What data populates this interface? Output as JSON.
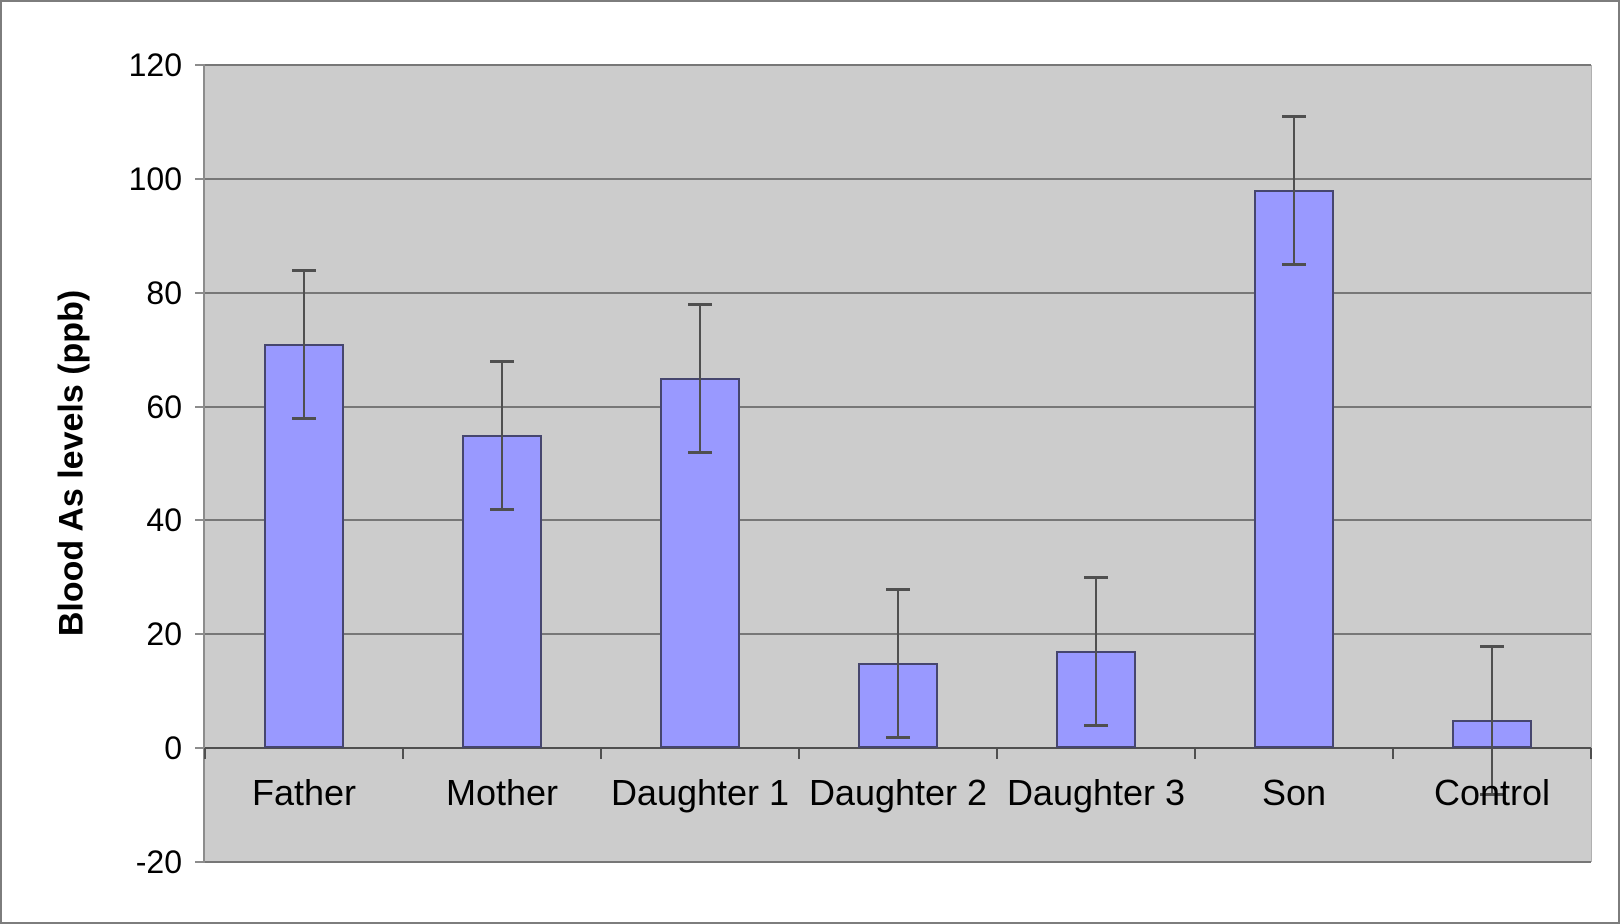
{
  "chart_data": {
    "type": "bar",
    "title": "",
    "ylabel": "Blood As levels (ppb)",
    "xlabel": "",
    "categories": [
      "Father",
      "Mother",
      "Daughter 1",
      "Daughter 2",
      "Daughter 3",
      "Son",
      "Control"
    ],
    "values": [
      71,
      55,
      65,
      15,
      17,
      98,
      5
    ],
    "error_bars": {
      "type": "symmetric",
      "values": [
        13,
        13,
        13,
        13,
        13,
        13,
        13
      ]
    },
    "ylim": [
      -20,
      120
    ],
    "yticks": [
      -20,
      0,
      20,
      40,
      60,
      80,
      100,
      120
    ],
    "grid": true,
    "legend": false,
    "plot_background": "#cccccc",
    "style": {
      "bar_fill": "#9999ff",
      "bar_border": "#46466e",
      "gridline": "#777777",
      "value_axis": "#8c8c8c",
      "category_axis": "#4f4f4f",
      "error_bar": "#4f4f4f",
      "frame_border": "#7d7d7d",
      "text": "#000000"
    }
  }
}
